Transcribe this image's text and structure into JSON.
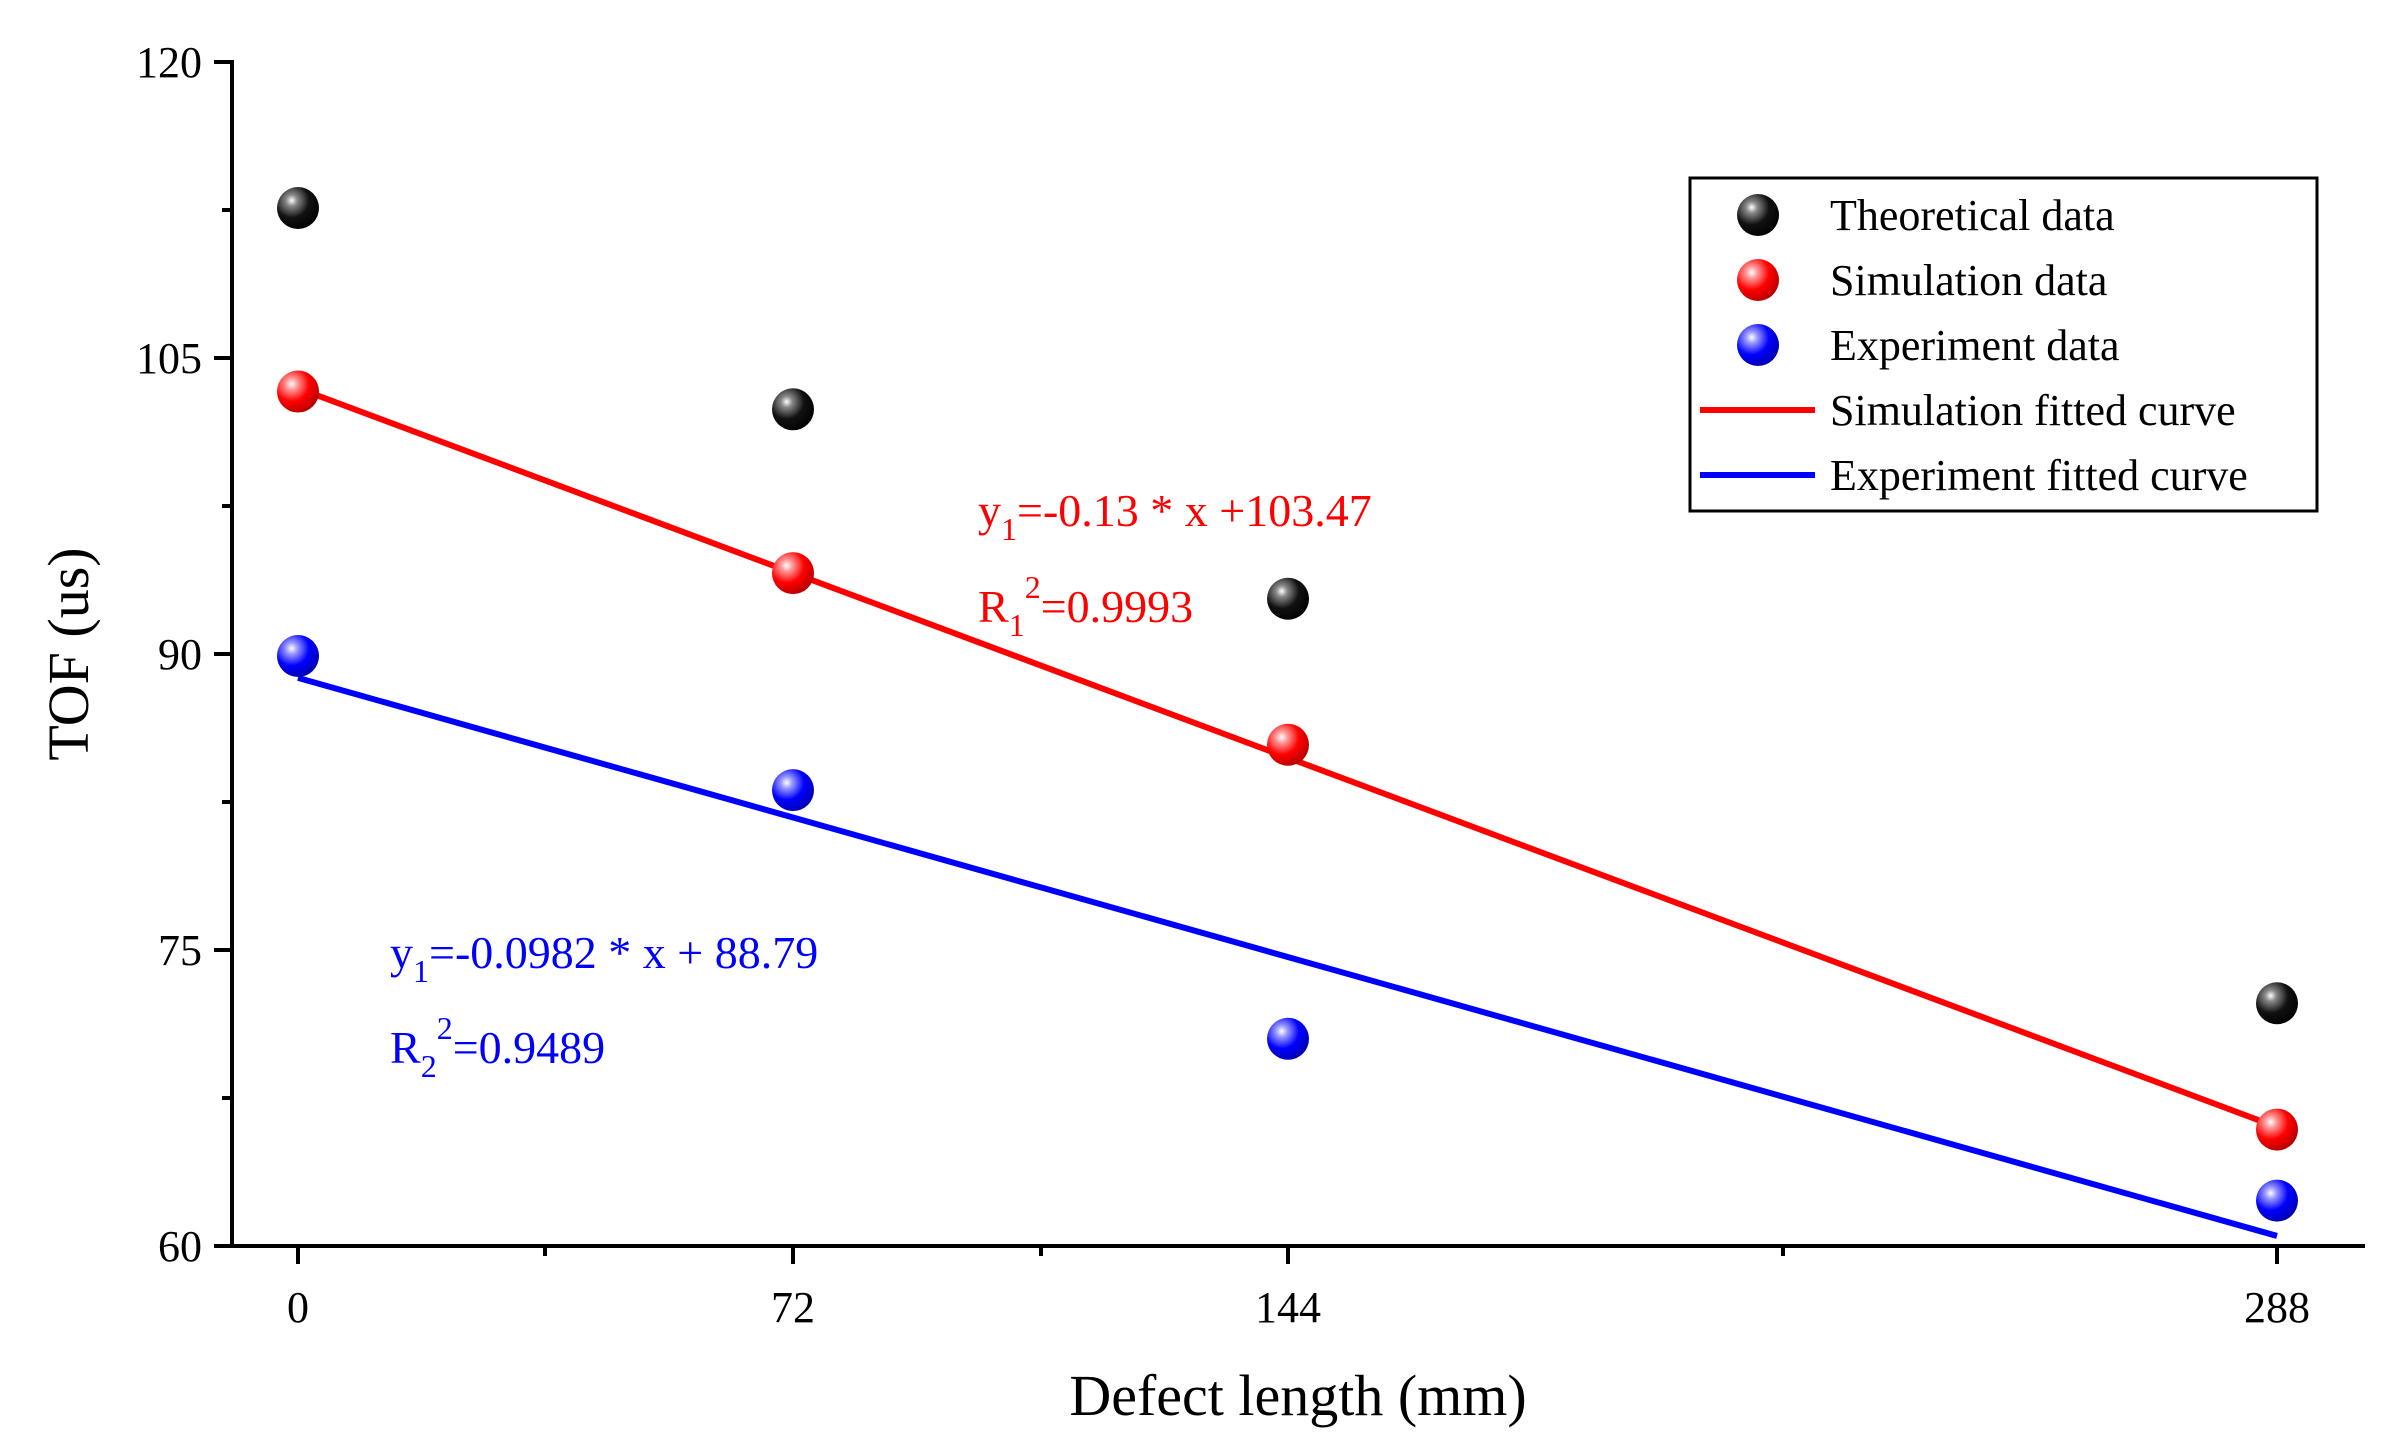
{
  "chart_data": {
    "type": "scatter",
    "xlabel": "Defect length (mm)",
    "ylabel": "TOF (us)",
    "x_ticks": [
      0,
      72,
      144,
      288
    ],
    "y_ticks": [
      60,
      75,
      90,
      105,
      120
    ],
    "ylim": [
      60,
      120
    ],
    "series": [
      {
        "name": "Theoretical data",
        "kind": "points",
        "color": "#000000",
        "x": [
          0,
          72,
          144,
          288
        ],
        "y": [
          112.6,
          102.4,
          92.8,
          72.3
        ]
      },
      {
        "name": "Simulation data",
        "kind": "points",
        "color": "#ff0000",
        "x": [
          0,
          72,
          144,
          288
        ],
        "y": [
          103.3,
          94.1,
          85.4,
          65.9
        ]
      },
      {
        "name": "Experiment data",
        "kind": "points",
        "color": "#0000ff",
        "x": [
          0,
          72,
          144,
          288
        ],
        "y": [
          89.9,
          83.1,
          70.5,
          62.3
        ]
      },
      {
        "name": "Simulation fitted curve",
        "kind": "line",
        "color": "#ff0000",
        "x": [
          0,
          288
        ],
        "y": [
          103.47,
          66.03
        ]
      },
      {
        "name": "Experiment fitted curve",
        "kind": "line",
        "color": "#0000ff",
        "x": [
          0,
          288
        ],
        "y": [
          88.79,
          60.51
        ]
      }
    ],
    "annotations": [
      {
        "text": "y1=-0.13 * x +103.47",
        "color": "#ff0000"
      },
      {
        "text": "R1^2=0.9993",
        "color": "#ff0000"
      },
      {
        "text": "y1=-0.0982 * x + 88.79",
        "color": "#0000ff"
      },
      {
        "text": "R2^2=0.9489",
        "color": "#0000ff"
      }
    ],
    "legend_position": "top-right"
  },
  "annotations_parts": {
    "sim_eq": {
      "var": "y",
      "sub": "1",
      "rest": "=-0.13 * x +103.47"
    },
    "sim_r2": {
      "var": "R",
      "sub": "1",
      "sup": "2",
      "rest": "=0.9993"
    },
    "exp_eq": {
      "var": "y",
      "sub": "1",
      "rest": "=-0.0982 * x + 88.79"
    },
    "exp_r2": {
      "var": "R",
      "sub": "2",
      "sup": "2",
      "rest": "=0.9489"
    }
  }
}
